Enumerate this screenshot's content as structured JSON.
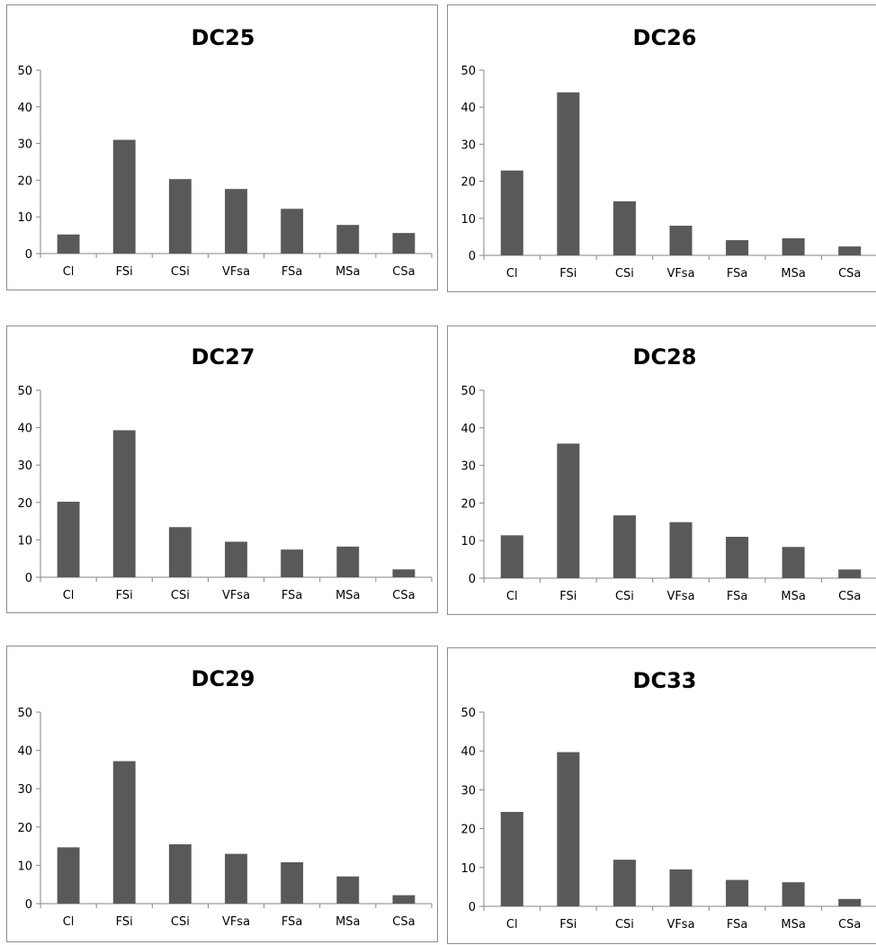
{
  "colors": {
    "bar": "#595959",
    "axis": "#868686",
    "border": "#8c8c8c"
  },
  "chart_data": [
    {
      "type": "bar",
      "title": "DC25",
      "categories": [
        "Cl",
        "FSi",
        "CSi",
        "VFsa",
        "FSa",
        "MSa",
        "CSa"
      ],
      "values": [
        5.2,
        31.0,
        20.3,
        17.6,
        12.2,
        7.8,
        5.6
      ],
      "ylim": [
        0,
        50
      ],
      "yticks": [
        0,
        10,
        20,
        30,
        40,
        50
      ],
      "xlabel": "",
      "ylabel": "",
      "grid": false,
      "legend": "none"
    },
    {
      "type": "bar",
      "title": "DC26",
      "categories": [
        "Cl",
        "FSi",
        "CSi",
        "VFsa",
        "FSa",
        "MSa",
        "CSa"
      ],
      "values": [
        22.9,
        44.0,
        14.6,
        8.0,
        4.1,
        4.6,
        2.4
      ],
      "ylim": [
        0,
        50
      ],
      "yticks": [
        0,
        10,
        20,
        30,
        40,
        50
      ],
      "xlabel": "",
      "ylabel": "",
      "grid": false,
      "legend": "none"
    },
    {
      "type": "bar",
      "title": "DC27",
      "categories": [
        "Cl",
        "FSi",
        "CSi",
        "VFsa",
        "FSa",
        "MSa",
        "CSa"
      ],
      "values": [
        20.2,
        39.3,
        13.4,
        9.5,
        7.4,
        8.2,
        2.1
      ],
      "ylim": [
        0,
        50
      ],
      "yticks": [
        0,
        10,
        20,
        30,
        40,
        50
      ],
      "xlabel": "",
      "ylabel": "",
      "grid": false,
      "legend": "none"
    },
    {
      "type": "bar",
      "title": "DC28",
      "categories": [
        "Cl",
        "FSi",
        "CSi",
        "VFsa",
        "FSa",
        "MSa",
        "CSa"
      ],
      "values": [
        11.4,
        35.8,
        16.7,
        14.9,
        11.0,
        8.3,
        2.3
      ],
      "ylim": [
        0,
        50
      ],
      "yticks": [
        0,
        10,
        20,
        30,
        40,
        50
      ],
      "xlabel": "",
      "ylabel": "",
      "grid": false,
      "legend": "none"
    },
    {
      "type": "bar",
      "title": "DC29",
      "categories": [
        "Cl",
        "FSi",
        "CSi",
        "VFsa",
        "FSa",
        "MSa",
        "CSa"
      ],
      "values": [
        14.7,
        37.2,
        15.5,
        13.0,
        10.8,
        7.1,
        2.2
      ],
      "ylim": [
        0,
        50
      ],
      "yticks": [
        0,
        10,
        20,
        30,
        40,
        50
      ],
      "xlabel": "",
      "ylabel": "",
      "grid": false,
      "legend": "none"
    },
    {
      "type": "bar",
      "title": "DC33",
      "categories": [
        "Cl",
        "FSi",
        "CSi",
        "VFsa",
        "FSa",
        "MSa",
        "CSa"
      ],
      "values": [
        24.3,
        39.7,
        12.0,
        9.5,
        6.8,
        6.2,
        1.9
      ],
      "ylim": [
        0,
        50
      ],
      "yticks": [
        0,
        10,
        20,
        30,
        40,
        50
      ],
      "xlabel": "",
      "ylabel": "",
      "grid": false,
      "legend": "none"
    }
  ]
}
